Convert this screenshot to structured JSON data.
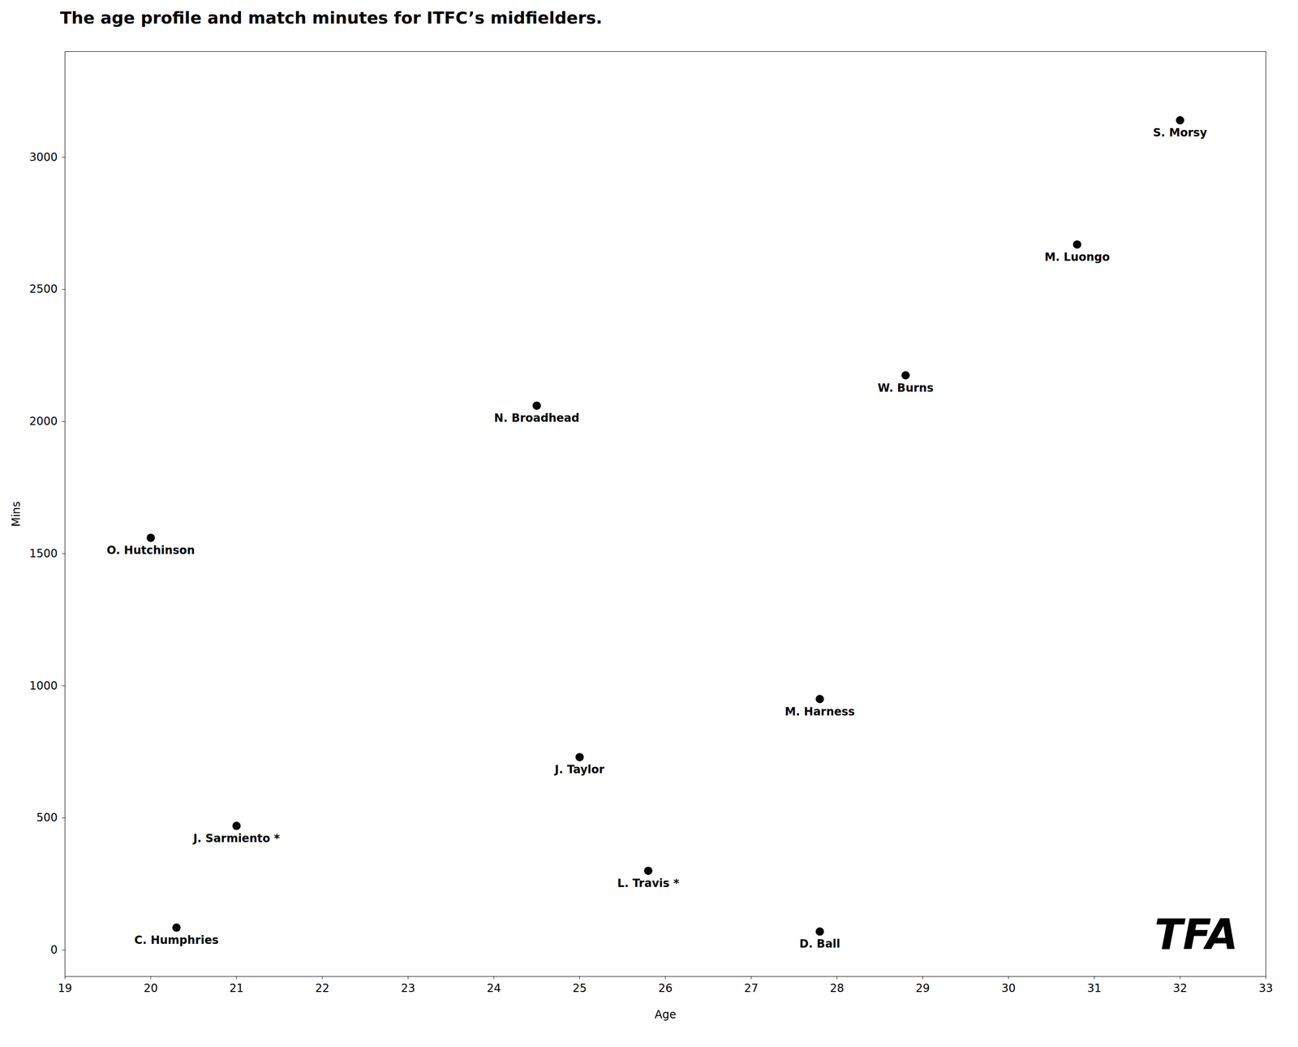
{
  "chart_data": {
    "type": "scatter",
    "title": "The age profile and match minutes for ITFC’s midfielders.",
    "x": [
      20.0,
      20.3,
      21.0,
      24.5,
      25.0,
      25.8,
      27.8,
      28.8,
      27.8,
      30.8,
      32.0
    ],
    "values": [
      1560,
      85,
      470,
      2060,
      730,
      300,
      950,
      2175,
      70,
      2670,
      3140
    ],
    "labels": [
      "O. Hutchinson",
      "C. Humphries",
      "J. Sarmiento *",
      "N. Broadhead",
      "J. Taylor",
      "L. Travis *",
      "M. Harness",
      "W. Burns",
      "D. Ball",
      "M. Luongo",
      "S. Morsy"
    ],
    "xlabel": "Age",
    "ylabel": "Mins",
    "xlim": [
      19,
      33
    ],
    "ylim": [
      -100,
      3400
    ],
    "xticks": [
      19,
      20,
      21,
      22,
      23,
      24,
      25,
      26,
      27,
      28,
      29,
      30,
      31,
      32,
      33
    ],
    "yticks": [
      0,
      500,
      1000,
      1500,
      2000,
      2500,
      3000
    ],
    "annotations": [
      "TFA"
    ],
    "grid": false
  }
}
